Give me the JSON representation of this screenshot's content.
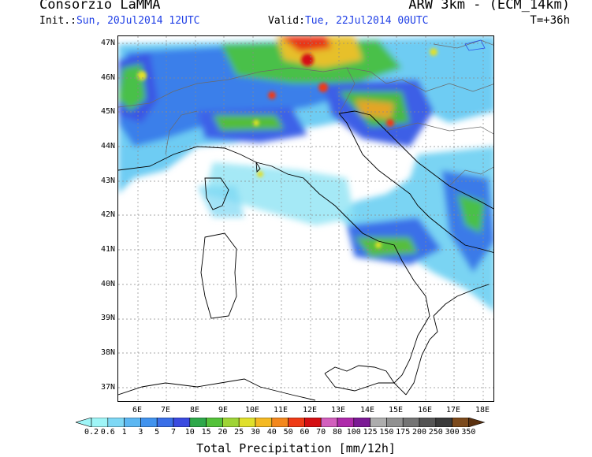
{
  "header": {
    "org": "Consorzio LaMMA",
    "model": "ARW 3km - (ECM_14km)",
    "init_label": "Init.:",
    "init_value": "Sun, 20Jul2014 12UTC",
    "valid_label": "Valid:",
    "valid_value": "Tue, 22Jul2014 00UTC",
    "timestep": "T=+36h"
  },
  "axes": {
    "lat_labels": [
      "47N",
      "46N",
      "45N",
      "44N",
      "43N",
      "42N",
      "41N",
      "40N",
      "39N",
      "38N",
      "37N"
    ],
    "lon_labels": [
      "6E",
      "7E",
      "8E",
      "9E",
      "10E",
      "11E",
      "12E",
      "13E",
      "14E",
      "15E",
      "16E",
      "17E",
      "18E"
    ]
  },
  "colorbar": {
    "title": "Total Precipitation [mm/12h]",
    "labels": [
      "0.2",
      "0.6",
      "1",
      "3",
      "5",
      "7",
      "10",
      "15",
      "20",
      "25",
      "30",
      "40",
      "50",
      "60",
      "70",
      "80",
      "100",
      "125",
      "150",
      "175",
      "200",
      "250",
      "300",
      "350"
    ],
    "colors": [
      "#9ff5f7",
      "#7ed8f5",
      "#5cb7f2",
      "#4193ee",
      "#3a6fe8",
      "#3b4be0",
      "#2ea84a",
      "#54c23a",
      "#9ed436",
      "#e0e02c",
      "#f4b923",
      "#f3881d",
      "#ef3b16",
      "#d40f12",
      "#d25fbd",
      "#ae2aaa",
      "#7b1a94",
      "#adadad",
      "#919191",
      "#747474",
      "#555555",
      "#3a3a3a",
      "#7c4a1c",
      "#5a300f"
    ]
  }
}
